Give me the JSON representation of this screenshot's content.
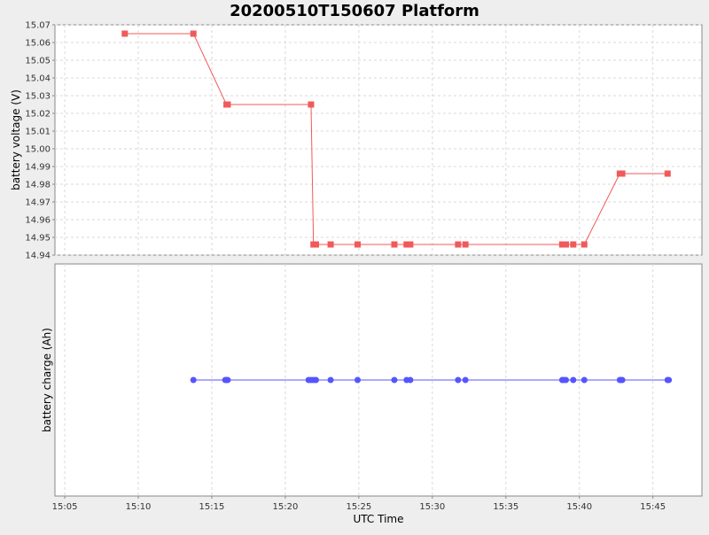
{
  "chart_data": {
    "type": "line",
    "title": "20200510T150607 Platform",
    "xlabel": "UTC Time",
    "x_ticks": [
      "15:05",
      "15:10",
      "15:15",
      "15:20",
      "15:25",
      "15:30",
      "15:35",
      "15:40",
      "15:45"
    ],
    "x_range": [
      "15:04:20",
      "15:48:20"
    ],
    "grid": true,
    "panels": [
      {
        "ylabel": "battery voltage (V)",
        "ylim": [
          14.94,
          15.07
        ],
        "y_ticks": [
          "14.94",
          "14.95",
          "14.96",
          "14.97",
          "14.98",
          "14.99",
          "15.00",
          "15.01",
          "15.02",
          "15.03",
          "15.04",
          "15.05",
          "15.06",
          "15.07"
        ],
        "marker": "square",
        "color": "#f05a5a",
        "series": [
          {
            "x": [
              "15:09:05",
              "15:13:45",
              "15:16:00",
              "15:16:05",
              "15:21:45",
              "15:21:55",
              "15:22:05",
              "15:23:05",
              "15:24:55",
              "15:27:25",
              "15:28:15",
              "15:28:30",
              "15:31:45",
              "15:32:15",
              "15:38:50",
              "15:39:05",
              "15:39:35",
              "15:40:20",
              "15:42:45",
              "15:42:55",
              "15:46:00"
            ],
            "y": [
              15.065,
              15.065,
              15.025,
              15.025,
              15.025,
              14.946,
              14.946,
              14.946,
              14.946,
              14.946,
              14.946,
              14.946,
              14.946,
              14.946,
              14.946,
              14.946,
              14.946,
              14.946,
              14.986,
              14.986,
              14.986
            ]
          }
        ]
      },
      {
        "ylabel": "battery charge (Ah)",
        "y_ticks": [],
        "marker": "circle",
        "color": "#5555ff",
        "series": [
          {
            "x": [
              "15:13:45",
              "15:15:55",
              "15:16:00",
              "15:16:05",
              "15:21:35",
              "15:21:45",
              "15:21:55",
              "15:22:05",
              "15:23:05",
              "15:24:55",
              "15:27:25",
              "15:28:15",
              "15:28:30",
              "15:31:45",
              "15:32:15",
              "15:38:50",
              "15:38:55",
              "15:39:05",
              "15:39:35",
              "15:40:20",
              "15:42:45",
              "15:42:50",
              "15:42:55",
              "15:46:00",
              "15:46:05"
            ],
            "y": [
              0.5,
              0.5,
              0.5,
              0.5,
              0.5,
              0.5,
              0.5,
              0.5,
              0.5,
              0.5,
              0.5,
              0.5,
              0.5,
              0.5,
              0.5,
              0.5,
              0.5,
              0.5,
              0.5,
              0.5,
              0.5,
              0.5,
              0.5,
              0.5,
              0.5
            ]
          }
        ]
      }
    ]
  }
}
